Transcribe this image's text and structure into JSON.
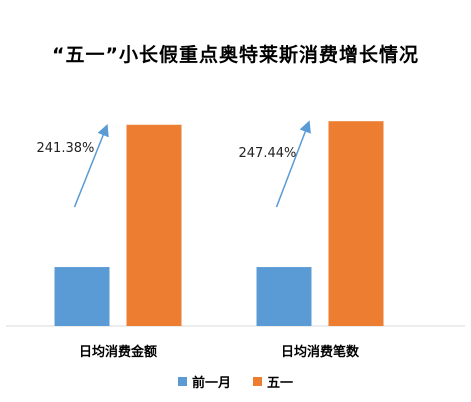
{
  "chart_data": {
    "type": "bar",
    "title": "“五一”小长假重点奥特莱斯消费增长情况",
    "categories": [
      "日均消费金额",
      "日均消费笔数"
    ],
    "series": [
      {
        "name": "前一月",
        "color": "#5b9bd5",
        "values": [
          1.0,
          1.0
        ]
      },
      {
        "name": "五一",
        "color": "#ed7d31",
        "values": [
          3.4138,
          3.4744
        ]
      }
    ],
    "annotations": [
      "241.38%",
      "247.44%"
    ],
    "ylim": [
      0,
      3.8
    ],
    "grid": false,
    "legend": "bottom",
    "xlabel": "",
    "ylabel": ""
  }
}
